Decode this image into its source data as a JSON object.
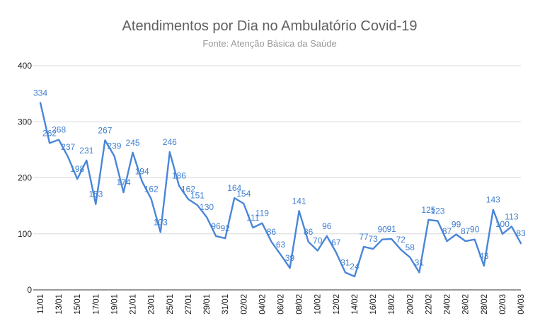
{
  "chart_data": {
    "type": "line",
    "title": "Atendimentos por Dia no Ambulatório Covid-19",
    "subtitle": "Fonte: Atenção Básica da Saúde",
    "xlabel": "",
    "ylabel": "",
    "ylim": [
      0,
      400
    ],
    "yticks": [
      0,
      100,
      200,
      300,
      400
    ],
    "grid": true,
    "line_color": "#4a86d8",
    "label_color": "#3f7fd1",
    "x_tick_labels": [
      "11/01",
      "13/01",
      "15/01",
      "17/01",
      "19/01",
      "21/01",
      "23/01",
      "25/01",
      "27/01",
      "29/01",
      "31/01",
      "02/02",
      "04/02",
      "06/02",
      "08/02",
      "10/02",
      "12/02",
      "14/02",
      "16/02",
      "18/02",
      "20/02",
      "22/02",
      "24/02",
      "26/02",
      "28/02",
      "02/03",
      "04/03"
    ],
    "categories": [
      "11/01",
      "12/01",
      "13/01",
      "14/01",
      "15/01",
      "16/01",
      "17/01",
      "18/01",
      "19/01",
      "20/01",
      "21/01",
      "22/01",
      "23/01",
      "24/01",
      "25/01",
      "26/01",
      "27/01",
      "28/01",
      "29/01",
      "30/01",
      "31/01",
      "01/02",
      "02/02",
      "03/02",
      "04/02",
      "05/02",
      "06/02",
      "07/02",
      "08/02",
      "09/02",
      "10/02",
      "11/02",
      "12/02",
      "13/02",
      "14/02",
      "15/02",
      "16/02",
      "17/02",
      "18/02",
      "19/02",
      "20/02",
      "21/02",
      "22/02",
      "23/02",
      "24/02",
      "25/02",
      "26/02",
      "27/02",
      "28/02",
      "01/03",
      "02/03",
      "03/03",
      "04/03"
    ],
    "series": [
      {
        "values": [
          334,
          262,
          268,
          237,
          198,
          231,
          153,
          267,
          239,
          174,
          245,
          194,
          162,
          103,
          246,
          186,
          162,
          151,
          130,
          96,
          92,
          164,
          154,
          111,
          119,
          86,
          63,
          39,
          141,
          86,
          70,
          96,
          67,
          31,
          24,
          77,
          73,
          90,
          91,
          72,
          58,
          31,
          125,
          123,
          87,
          99,
          87,
          90,
          43,
          143,
          100,
          113,
          83
        ]
      }
    ]
  }
}
